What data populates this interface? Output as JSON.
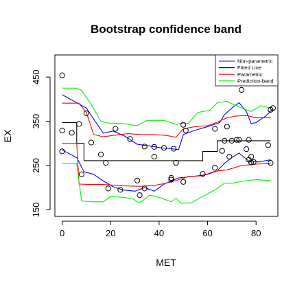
{
  "chart_data": {
    "type": "line",
    "title": "Bootstrap confidence band",
    "xlabel": "MET",
    "ylabel": "EX",
    "xlim": [
      -3,
      89
    ],
    "ylim": [
      135,
      500
    ],
    "xticks": [
      0,
      20,
      40,
      60,
      80
    ],
    "yticks": [
      150,
      250,
      350,
      450
    ],
    "legend_position": "top-right",
    "legend": [
      {
        "name": "Non-parametric",
        "color": "#0000ff"
      },
      {
        "name": "Fitted Line",
        "color": "#000000"
      },
      {
        "name": "Parametric",
        "color": "#ff0000"
      },
      {
        "name": "Prediction-band",
        "color": "#00ee00"
      }
    ],
    "points": [
      [
        0,
        454
      ],
      [
        0,
        329
      ],
      [
        0,
        282
      ],
      [
        4,
        324
      ],
      [
        7,
        344
      ],
      [
        8,
        230
      ],
      [
        10,
        368
      ],
      [
        12,
        302
      ],
      [
        16,
        275
      ],
      [
        18,
        256
      ],
      [
        19,
        198
      ],
      [
        22,
        333
      ],
      [
        24,
        195
      ],
      [
        28,
        310
      ],
      [
        31,
        216
      ],
      [
        32,
        183
      ],
      [
        34,
        293
      ],
      [
        34,
        198
      ],
      [
        38,
        292
      ],
      [
        38,
        270
      ],
      [
        42,
        290
      ],
      [
        45,
        218
      ],
      [
        45,
        222
      ],
      [
        46,
        288
      ],
      [
        47,
        256
      ],
      [
        50,
        342
      ],
      [
        50,
        213
      ],
      [
        51,
        329
      ],
      [
        58,
        231
      ],
      [
        63,
        333
      ],
      [
        63,
        245
      ],
      [
        66,
        283
      ],
      [
        67,
        306
      ],
      [
        68,
        338
      ],
      [
        69,
        270
      ],
      [
        70,
        306
      ],
      [
        72,
        308
      ],
      [
        73,
        308
      ],
      [
        74,
        421
      ],
      [
        76,
        287
      ],
      [
        77,
        308
      ],
      [
        77,
        263
      ],
      [
        78,
        270
      ],
      [
        78,
        257
      ],
      [
        79,
        258
      ],
      [
        85,
        296
      ],
      [
        86,
        256
      ],
      [
        86,
        376
      ],
      [
        87,
        380
      ]
    ],
    "series": [
      {
        "name": "Fitted Line",
        "color": "#000000",
        "x": [
          0,
          6,
          6,
          9,
          9,
          58,
          58,
          64,
          64,
          86
        ],
        "y": [
          347,
          347,
          300,
          300,
          261,
          261,
          282,
          282,
          306,
          306
        ]
      },
      {
        "name": "Non-parametric",
        "color": "#0000ff",
        "x": [
          0,
          6,
          10,
          13,
          17,
          21,
          26,
          31,
          36,
          41,
          45,
          48,
          50,
          55,
          60,
          65,
          67,
          70,
          73,
          76,
          78,
          80,
          84,
          87
        ],
        "y": [
          410,
          392,
          380,
          355,
          323,
          328,
          316,
          298,
          294,
          290,
          288,
          286,
          320,
          330,
          338,
          347,
          365,
          380,
          392,
          372,
          345,
          347,
          362,
          378
        ]
      },
      {
        "name": "Non-parametric",
        "color": "#0000ff",
        "x": [
          0,
          6,
          9,
          13,
          17,
          21,
          25,
          30,
          34,
          38,
          42,
          45,
          48,
          55,
          60,
          64,
          67,
          70,
          73,
          77,
          81,
          86
        ],
        "y": [
          285,
          268,
          236,
          230,
          215,
          202,
          195,
          192,
          200,
          192,
          208,
          215,
          222,
          226,
          230,
          238,
          255,
          268,
          278,
          260,
          258,
          263
        ]
      },
      {
        "name": "Parametric",
        "color": "#ff0000",
        "x": [
          0,
          7,
          7,
          10,
          13,
          17,
          21,
          27,
          33,
          38,
          43,
          47,
          50,
          55,
          60,
          64,
          68,
          72,
          76,
          80,
          86
        ],
        "y": [
          391,
          391,
          390,
          370,
          320,
          315,
          318,
          322,
          320,
          320,
          318,
          314,
          333,
          338,
          340,
          348,
          358,
          362,
          363,
          358,
          359
        ]
      },
      {
        "name": "Parametric",
        "color": "#ff0000",
        "x": [
          0,
          6,
          7,
          12,
          17,
          25,
          33,
          38,
          43,
          48,
          52,
          58,
          63,
          68,
          74,
          80,
          86
        ],
        "y": [
          300,
          300,
          208,
          207,
          207,
          204,
          203,
          205,
          210,
          218,
          225,
          227,
          237,
          240,
          250,
          253,
          255
        ]
      },
      {
        "name": "Prediction-band",
        "color": "#00ee00",
        "x": [
          0,
          6,
          8,
          12,
          16,
          20,
          25,
          31,
          35,
          42,
          47,
          49,
          52,
          56,
          61,
          64,
          68,
          74,
          78,
          82,
          86
        ],
        "y": [
          425,
          425,
          420,
          388,
          350,
          345,
          345,
          340,
          352,
          352,
          343,
          345,
          345,
          370,
          375,
          392,
          395,
          380,
          372,
          385,
          380
        ]
      },
      {
        "name": "Prediction-band",
        "color": "#00ee00",
        "x": [
          0,
          6,
          8,
          12,
          17,
          20,
          25,
          29,
          32,
          36,
          40,
          45,
          47,
          49,
          53,
          58,
          63,
          67,
          70,
          75,
          80,
          86
        ],
        "y": [
          255,
          255,
          170,
          168,
          168,
          180,
          178,
          175,
          165,
          183,
          178,
          168,
          176,
          165,
          165,
          180,
          195,
          210,
          210,
          215,
          218,
          216
        ]
      }
    ]
  }
}
